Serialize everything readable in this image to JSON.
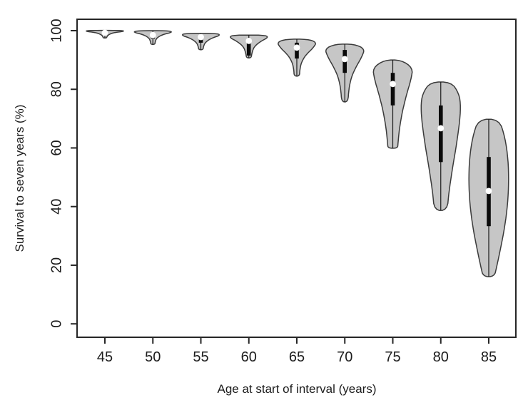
{
  "chart_data": {
    "type": "violin",
    "title": "",
    "xlabel": "Age at start of interval (years)",
    "ylabel": "Survival to seven years (%)",
    "x_ticks": [
      45,
      50,
      55,
      60,
      65,
      70,
      75,
      80,
      85
    ],
    "y_ticks": [
      0,
      20,
      40,
      60,
      80,
      100
    ],
    "xlim": [
      42,
      88
    ],
    "ylim": [
      -5,
      104
    ],
    "grid": false,
    "legend": "none",
    "colors": {
      "violin_fill": "#c6c6c6",
      "violin_outline": "#3a3a3a",
      "box_bar": "#0a0a0a",
      "median_dot": "#ffffff",
      "axis": "#262626",
      "text": "#1c1c1c",
      "background": "#ffffff"
    },
    "series": [
      {
        "age": 45,
        "min": 97.5,
        "q1": 98.8,
        "median": 99.3,
        "q3": 99.7,
        "max": 100.1,
        "profile": [
          [
            100.1,
            0.8
          ],
          [
            99.8,
            1.0
          ],
          [
            99.3,
            0.4
          ],
          [
            98.5,
            0.16
          ],
          [
            97.9,
            0.1
          ],
          [
            97.5,
            0.08
          ]
        ]
      },
      {
        "age": 50,
        "min": 95.3,
        "q1": 97.3,
        "median": 98.5,
        "q3": 99.2,
        "max": 100.0,
        "profile": [
          [
            100.0,
            0.75
          ],
          [
            99.5,
            1.0
          ],
          [
            98.7,
            0.5
          ],
          [
            97.6,
            0.2
          ],
          [
            96.3,
            0.12
          ],
          [
            95.3,
            0.1
          ]
        ]
      },
      {
        "age": 55,
        "min": 93.5,
        "q1": 95.9,
        "median": 97.8,
        "q3": 98.4,
        "max": 99.1,
        "profile": [
          [
            99.1,
            0.75
          ],
          [
            98.5,
            1.0
          ],
          [
            97.4,
            0.52
          ],
          [
            96.0,
            0.22
          ],
          [
            94.6,
            0.13
          ],
          [
            93.5,
            0.11
          ]
        ]
      },
      {
        "age": 60,
        "min": 90.7,
        "q1": 91.5,
        "median": 96.5,
        "q3": 96.9,
        "max": 98.5,
        "profile": [
          [
            98.5,
            0.75
          ],
          [
            97.8,
            1.0
          ],
          [
            96.3,
            0.58
          ],
          [
            94.5,
            0.26
          ],
          [
            92.3,
            0.15
          ],
          [
            90.7,
            0.12
          ]
        ]
      },
      {
        "age": 65,
        "min": 84.5,
        "q1": 90.5,
        "median": 94.2,
        "q3": 95.9,
        "max": 97.1,
        "profile": [
          [
            97.1,
            0.55
          ],
          [
            96.0,
            1.0
          ],
          [
            94.0,
            0.8
          ],
          [
            91.5,
            0.42
          ],
          [
            89.0,
            0.22
          ],
          [
            86.5,
            0.15
          ],
          [
            84.5,
            0.13
          ]
        ]
      },
      {
        "age": 70,
        "min": 75.7,
        "q1": 85.6,
        "median": 90.3,
        "q3": 93.4,
        "max": 95.4,
        "profile": [
          [
            95.4,
            0.48
          ],
          [
            93.8,
            1.0
          ],
          [
            91.0,
            0.85
          ],
          [
            87.5,
            0.55
          ],
          [
            84.0,
            0.32
          ],
          [
            80.0,
            0.2
          ],
          [
            75.7,
            0.16
          ]
        ]
      },
      {
        "age": 75,
        "min": 59.9,
        "q1": 74.5,
        "median": 81.8,
        "q3": 85.6,
        "max": 90.0,
        "profile": [
          [
            90.0,
            0.42
          ],
          [
            87.3,
            1.0
          ],
          [
            83.5,
            0.92
          ],
          [
            78.5,
            0.7
          ],
          [
            72.5,
            0.48
          ],
          [
            66.5,
            0.33
          ],
          [
            61.5,
            0.26
          ],
          [
            59.9,
            0.24
          ]
        ]
      },
      {
        "age": 80,
        "min": 38.7,
        "q1": 55.2,
        "median": 66.7,
        "q3": 74.5,
        "max": 82.5,
        "profile": [
          [
            82.5,
            0.52
          ],
          [
            78.5,
            0.92
          ],
          [
            74.0,
            1.0
          ],
          [
            68.0,
            0.93
          ],
          [
            60.0,
            0.76
          ],
          [
            52.0,
            0.56
          ],
          [
            45.0,
            0.41
          ],
          [
            38.7,
            0.32
          ]
        ]
      },
      {
        "age": 85,
        "min": 16.1,
        "q1": 33.3,
        "median": 45.3,
        "q3": 56.9,
        "max": 69.8,
        "profile": [
          [
            69.8,
            0.52
          ],
          [
            63.5,
            0.82
          ],
          [
            56.0,
            0.97
          ],
          [
            48.5,
            1.0
          ],
          [
            41.0,
            0.95
          ],
          [
            33.0,
            0.8
          ],
          [
            26.0,
            0.6
          ],
          [
            19.5,
            0.4
          ],
          [
            16.1,
            0.28
          ]
        ]
      }
    ]
  }
}
